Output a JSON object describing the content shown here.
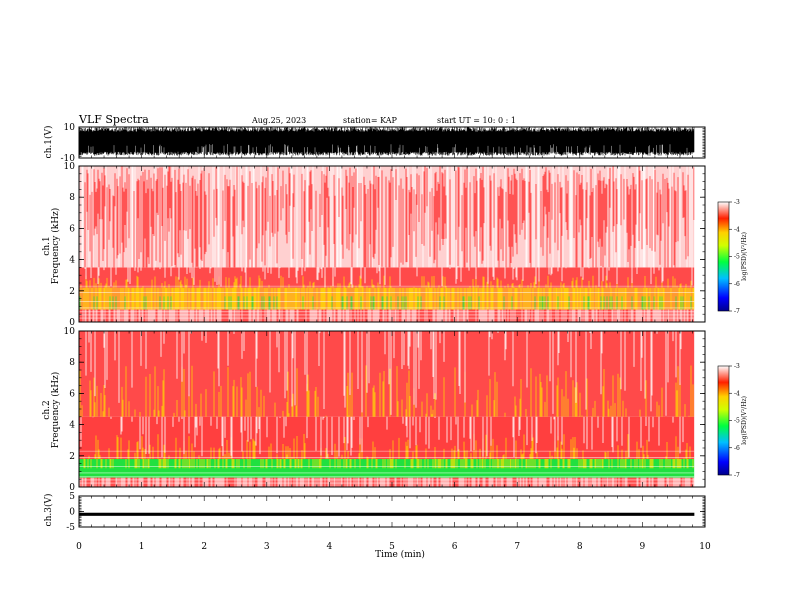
{
  "header": {
    "title": "VLF Spectra",
    "date": "Aug.25, 2023",
    "station": "station= KAP",
    "start_time": "start  UT =   10: 0  : 1"
  },
  "colors": {
    "spectrogram_high": "#ff2a2a",
    "spectrogram_mid": "#ffe000",
    "spectrogram_low": "#20e040",
    "waveform": "#000000"
  },
  "chart_data": [
    {
      "type": "line",
      "name": "ch.1 waveform",
      "ylabel": "ch.1(V)",
      "ylim": [
        -10,
        10
      ],
      "ytick_labels": [
        "10",
        "-10"
      ],
      "xlim": [
        0,
        10
      ],
      "shared_x": true,
      "note_data": "dense noise waveform filling roughly -8 to +10 V"
    },
    {
      "type": "heatmap",
      "name": "ch.1 spectrogram",
      "ylabel": "ch.1\nFrequency  (kHz)",
      "ylabel_line1": "ch.1",
      "ylabel_line2": "Frequency  (kHz)",
      "ylim": [
        0,
        10
      ],
      "ytick_labels": [
        "0",
        "2",
        "4",
        "6",
        "8",
        "10"
      ],
      "xlim": [
        0,
        9.83
      ],
      "colorbar": {
        "label": "log(PSD)(V²/Hz)",
        "range": [
          -7,
          -3
        ],
        "tick_labels": [
          "-3",
          "-4",
          "-5",
          "-6",
          "-7"
        ]
      },
      "bands": [
        {
          "from_khz": 0.0,
          "to_khz": 0.8,
          "level": "mixed"
        },
        {
          "from_khz": 0.8,
          "to_khz": 2.2,
          "level": "mid"
        },
        {
          "from_khz": 2.2,
          "to_khz": 3.5,
          "level": "high"
        },
        {
          "from_khz": 3.5,
          "to_khz": 10.0,
          "level": "sparse-high"
        }
      ]
    },
    {
      "type": "heatmap",
      "name": "ch.2 spectrogram",
      "ylabel": "ch.2\nFrequency  (kHz)",
      "ylabel_line1": "ch.2",
      "ylabel_line2": "Frequency  (kHz)",
      "ylim": [
        0,
        10
      ],
      "ytick_labels": [
        "0",
        "2",
        "4",
        "6",
        "8",
        "10"
      ],
      "xlim": [
        0,
        9.83
      ],
      "colorbar": {
        "label": "log(PSD)(V²/Hz)",
        "range": [
          -7,
          -3
        ],
        "tick_labels": [
          "-3",
          "-4",
          "-5",
          "-6",
          "-7"
        ]
      },
      "bands": [
        {
          "from_khz": 0.0,
          "to_khz": 0.6,
          "level": "mixed"
        },
        {
          "from_khz": 0.6,
          "to_khz": 1.8,
          "level": "low"
        },
        {
          "from_khz": 1.8,
          "to_khz": 4.5,
          "level": "mid-high"
        },
        {
          "from_khz": 4.5,
          "to_khz": 10.0,
          "level": "high"
        }
      ]
    },
    {
      "type": "line",
      "name": "ch.3 waveform",
      "ylabel": "ch.3(V)",
      "ylim": [
        -5,
        5
      ],
      "ytick_labels": [
        "5",
        "0",
        "-5"
      ],
      "xlim": [
        0,
        10
      ],
      "note_data": "flat signal near -1 V"
    }
  ],
  "x_axis": {
    "xlabel": "Time  (min)",
    "tick_labels": [
      "0",
      "1",
      "2",
      "3",
      "4",
      "5",
      "6",
      "7",
      "8",
      "9",
      "10"
    ],
    "range": [
      0,
      10
    ]
  }
}
